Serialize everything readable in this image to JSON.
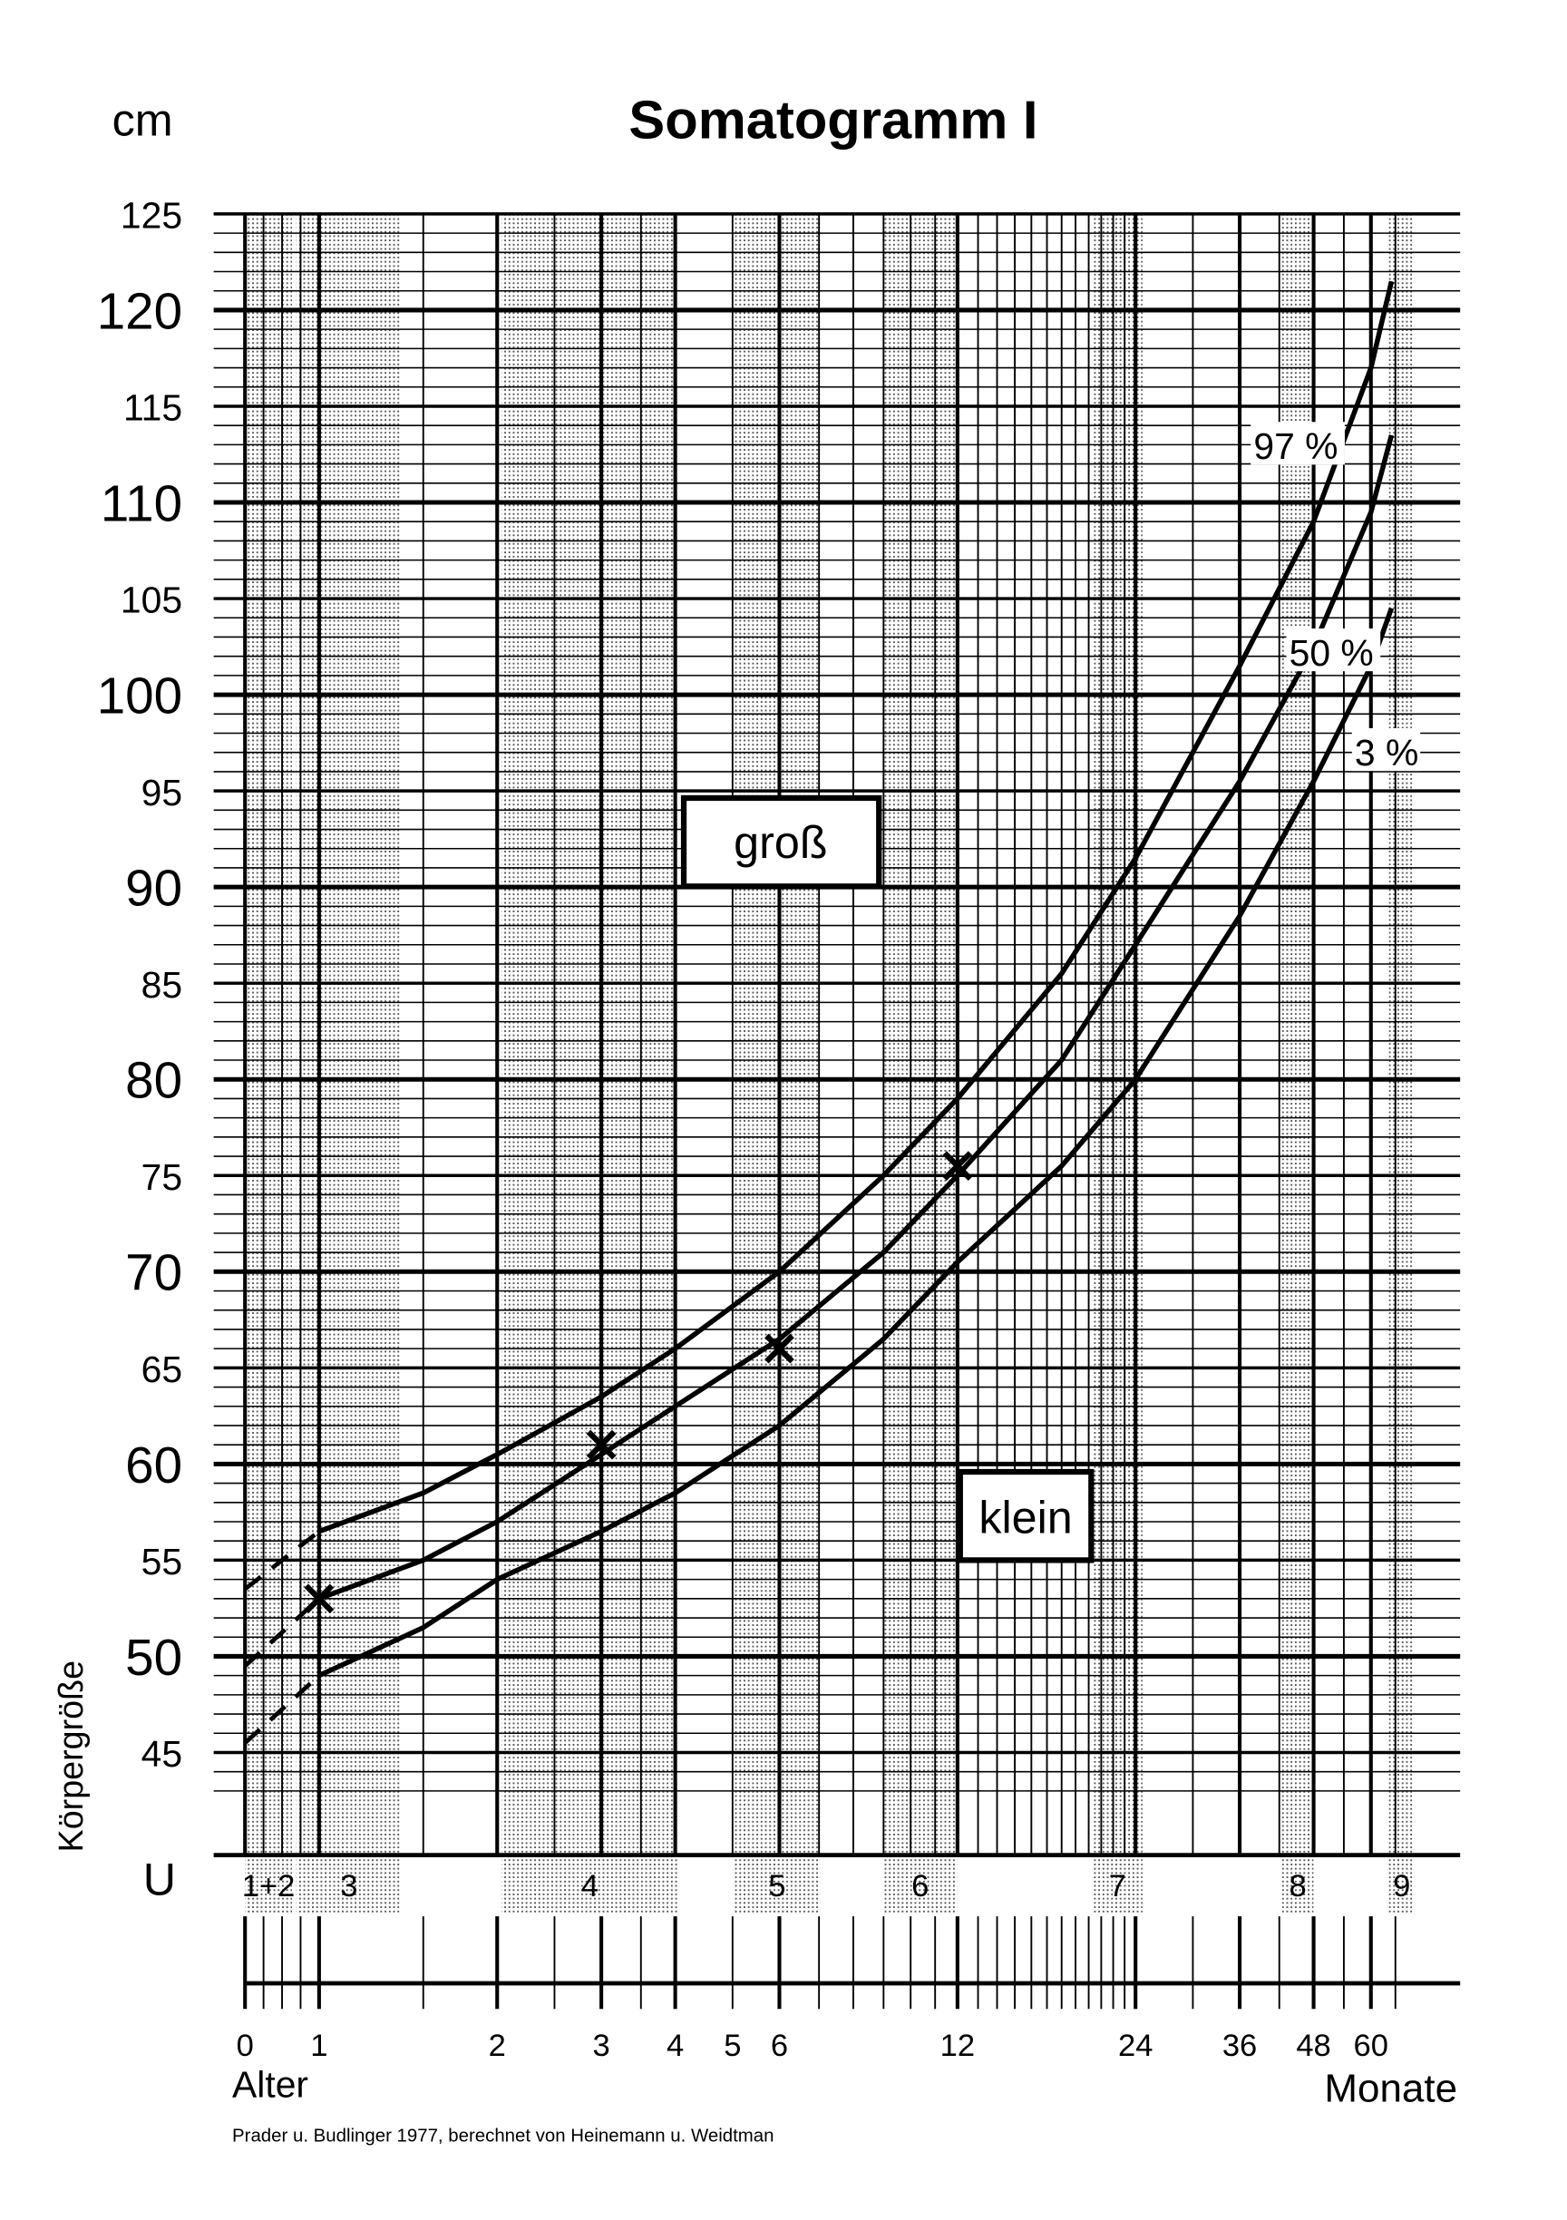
{
  "chart_data": {
    "type": "line",
    "title": "Somatogramm I",
    "y_unit_label": "cm",
    "ylabel": "Körpergröße",
    "xlabel_left": "Alter",
    "xlabel_right": "Monate",
    "ylim": [
      45,
      125
    ],
    "y_ticks": [
      125,
      120,
      115,
      110,
      105,
      100,
      95,
      90,
      85,
      80,
      75,
      70,
      65,
      60,
      55,
      50,
      45
    ],
    "x_ticks": [
      0,
      1,
      2,
      3,
      4,
      5,
      6,
      12,
      24,
      36,
      48,
      60
    ],
    "x_scale": "log (months), 0 placed separately",
    "grid": true,
    "exam_row_label": "U",
    "exams": [
      "1+2",
      "3",
      "4",
      "5",
      "6",
      "7",
      "8",
      "9"
    ],
    "series": [
      {
        "name": "97 %",
        "x": [
          0,
          1,
          1.5,
          2,
          3,
          4,
          6,
          9,
          12,
          18,
          24,
          36,
          48,
          60,
          65
        ],
        "y": [
          53.5,
          56.5,
          58.5,
          60.5,
          63.5,
          66,
          70,
          75,
          79,
          85.5,
          91.5,
          101.5,
          109,
          117,
          121.5
        ],
        "dashed_until": 1
      },
      {
        "name": "50 %",
        "x": [
          0,
          1,
          1.5,
          2,
          3,
          4,
          6,
          9,
          12,
          18,
          24,
          36,
          48,
          60,
          65
        ],
        "y": [
          49.5,
          53,
          55,
          57,
          60.5,
          63,
          66.5,
          71,
          75,
          81,
          87,
          95.5,
          102.5,
          109.5,
          113.5
        ],
        "dashed_until": 1
      },
      {
        "name": "3 %",
        "x": [
          0,
          1,
          1.5,
          2,
          3,
          4,
          6,
          9,
          12,
          18,
          24,
          36,
          48,
          60,
          65
        ],
        "y": [
          45.5,
          49,
          51.5,
          54,
          56.5,
          58.5,
          62,
          66.5,
          70.5,
          75.5,
          80,
          88.5,
          95.5,
          101.5,
          104.5
        ],
        "dashed_until": 1
      }
    ],
    "measurements": {
      "x": [
        1,
        3,
        6,
        12
      ],
      "y": [
        53,
        61,
        66,
        75.5
      ]
    },
    "annotations": {
      "above": "groß",
      "below": "klein"
    },
    "source": "Prader u. Budlinger 1977, berechnet von Heinemann u. Weidtman"
  }
}
